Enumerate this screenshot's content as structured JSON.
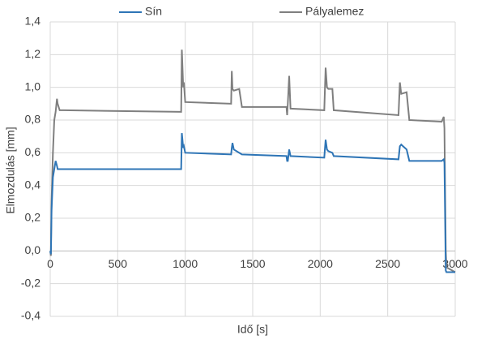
{
  "chart_data": {
    "type": "line",
    "x_label": "Idő [s]",
    "y_label": "Elmozdulás [mm]",
    "x": [
      0,
      5,
      10,
      20,
      30,
      40,
      50,
      55,
      70,
      100,
      970,
      975,
      985,
      990,
      1000,
      1340,
      1345,
      1350,
      1360,
      1400,
      1420,
      1750,
      1755,
      1760,
      1770,
      1780,
      2030,
      2040,
      2050,
      2060,
      2090,
      2100,
      2580,
      2590,
      2600,
      2640,
      2660,
      2900,
      2915,
      2920,
      2930,
      2935,
      3000
    ],
    "series": [
      {
        "name": "Pályalemez",
        "color": "#7f7f7f",
        "values": [
          0,
          -0.03,
          0.3,
          0.6,
          0.8,
          0.85,
          0.93,
          0.9,
          0.86,
          0.86,
          0.85,
          1.23,
          1.0,
          1.03,
          0.91,
          0.9,
          1.1,
          0.99,
          0.98,
          0.99,
          0.88,
          0.88,
          0.83,
          0.9,
          1.07,
          0.87,
          0.86,
          1.12,
          1.0,
          0.99,
          0.99,
          0.86,
          0.83,
          1.03,
          0.96,
          0.97,
          0.8,
          0.79,
          0.82,
          0.75,
          0.0,
          -0.1,
          -0.13
        ]
      },
      {
        "name": "Sín",
        "color": "#2e75b6",
        "values": [
          0,
          -0.02,
          0.25,
          0.45,
          0.5,
          0.55,
          0.52,
          0.5,
          0.5,
          0.5,
          0.5,
          0.72,
          0.63,
          0.64,
          0.6,
          0.59,
          0.63,
          0.66,
          0.62,
          0.6,
          0.59,
          0.58,
          0.55,
          0.55,
          0.62,
          0.58,
          0.57,
          0.68,
          0.62,
          0.61,
          0.6,
          0.58,
          0.56,
          0.64,
          0.65,
          0.62,
          0.55,
          0.55,
          0.56,
          0.54,
          -0.12,
          -0.13,
          -0.13
        ]
      }
    ],
    "xlim": [
      0,
      3000
    ],
    "xticks": [
      0,
      500,
      1000,
      1500,
      2000,
      2500,
      3000
    ],
    "ylim": [
      -0.4,
      1.4
    ],
    "yticks": [
      {
        "value": -0.4,
        "label": "-0,4"
      },
      {
        "value": -0.2,
        "label": "-0,2"
      },
      {
        "value": 0,
        "label": "0,0"
      },
      {
        "value": 0.2,
        "label": "0,2"
      },
      {
        "value": 0.4,
        "label": "0,4"
      },
      {
        "value": 0.6,
        "label": "0,6"
      },
      {
        "value": 0.8,
        "label": "0,8"
      },
      {
        "value": 1.0,
        "label": "1,0"
      },
      {
        "value": 1.2,
        "label": "1,2"
      },
      {
        "value": 1.4,
        "label": "1,4"
      }
    ],
    "grid": true
  }
}
